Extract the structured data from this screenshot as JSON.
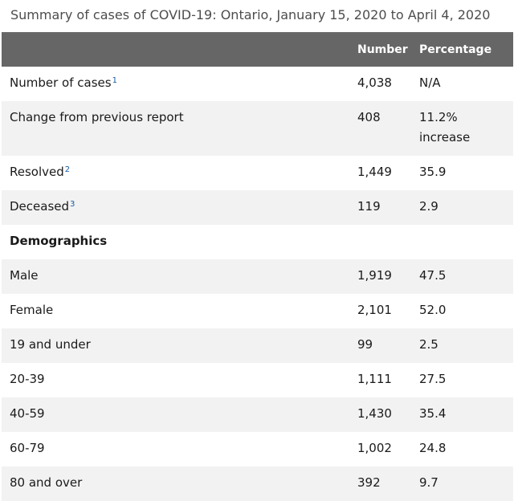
{
  "caption": "Summary of cases of COVID-19: Ontario, January 15, 2020 to April 4, 2020",
  "columns": {
    "label": "",
    "number": "Number",
    "percentage": "Percentage"
  },
  "rows": [
    {
      "label": "Number of cases",
      "sup": "1",
      "number": "4,038",
      "percentage": "N/A"
    },
    {
      "label": "Change from previous report",
      "number": "408",
      "percentage": "11.2%\nincrease"
    },
    {
      "label": "Resolved",
      "sup": "2",
      "number": "1,449",
      "percentage": "35.9"
    },
    {
      "label": "Deceased",
      "sup": "3",
      "number": "119",
      "percentage": "2.9"
    },
    {
      "label": "Demographics",
      "number": "",
      "percentage": ""
    },
    {
      "label": "Male",
      "number": "1,919",
      "percentage": "47.5"
    },
    {
      "label": "Female",
      "number": "2,101",
      "percentage": "52.0"
    },
    {
      "label": "19 and under",
      "number": "99",
      "percentage": "2.5"
    },
    {
      "label": "20-39",
      "number": "1,111",
      "percentage": "27.5"
    },
    {
      "label": "40-59",
      "number": "1,430",
      "percentage": "35.4"
    },
    {
      "label": "60-79",
      "number": "1,002",
      "percentage": "24.8"
    },
    {
      "label": "80 and over",
      "number": "392",
      "percentage": "9.7"
    }
  ]
}
